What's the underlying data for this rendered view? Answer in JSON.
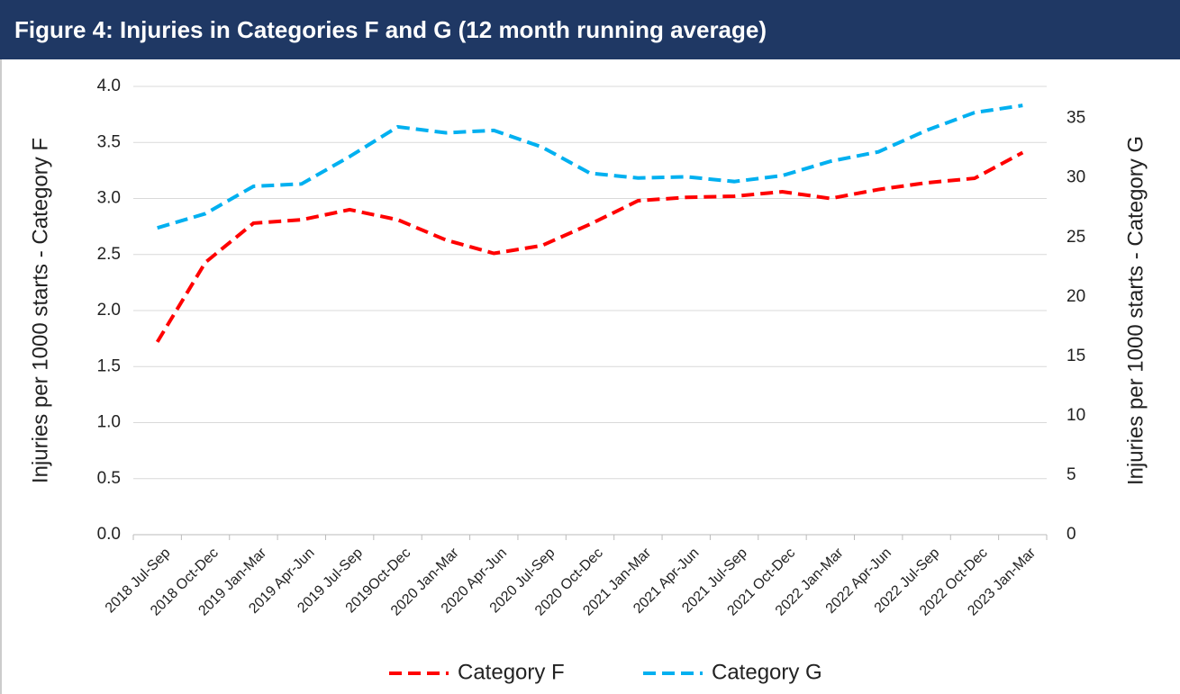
{
  "chart_data": {
    "type": "line",
    "title": "Figure 4: Injuries in Categories F and G (12 month running average)",
    "y_label": "Injuries per 1000 starts - Category F",
    "y2_label": "Injuries per 1000 starts - Category G",
    "categories": [
      "2018 Jul-Sep",
      "2018 Oct-Dec",
      "2019 Jan-Mar",
      "2019 Apr-Jun",
      "2019 Jul-Sep",
      "2019Oct-Dec",
      "2020 Jan-Mar",
      "2020 Apr-Jun",
      "2020 Jul-Sep",
      "2020 Oct-Dec",
      "2021 Jan-Mar",
      "2021 Apr-Jun",
      "2021 Jul-Sep",
      "2021 Oct-Dec",
      "2022 Jan-Mar",
      "2022 Apr-Jun",
      "2022 Jul-Sep",
      "2022 Oct-Dec",
      "2023 Jan-Mar"
    ],
    "series": [
      {
        "name": "Category F",
        "color": "#ff0000",
        "values": [
          1.72,
          2.43,
          2.78,
          2.81,
          2.9,
          2.81,
          2.63,
          2.51,
          2.58,
          2.77,
          2.98,
          3.01,
          3.02,
          3.06,
          3.0,
          3.08,
          3.14,
          3.18,
          3.41
        ]
      },
      {
        "name": "Category G",
        "color": "#00b0f0",
        "axis": "y2",
        "values": [
          25.8,
          27.0,
          29.3,
          29.5,
          31.8,
          34.3,
          33.8,
          34.0,
          32.6,
          30.4,
          30.0,
          30.1,
          29.7,
          30.2,
          31.4,
          32.2,
          34.0,
          35.5,
          36.1
        ]
      }
    ],
    "ylim": [
      0,
      4.0
    ],
    "yticks": [
      {
        "value": 0,
        "label": "0.0"
      },
      0.5,
      {
        "value": 1,
        "label": "1.0"
      },
      1.5,
      {
        "value": 2,
        "label": "2.0"
      },
      2.5,
      {
        "value": 3,
        "label": "3.0"
      },
      3.5,
      {
        "value": 4,
        "label": "4.0"
      }
    ],
    "y2lim": [
      0,
      37.7
    ],
    "y2ticks": [
      0,
      5,
      10,
      15,
      20,
      25,
      30,
      35
    ],
    "grid": true,
    "legend": "bottom"
  }
}
